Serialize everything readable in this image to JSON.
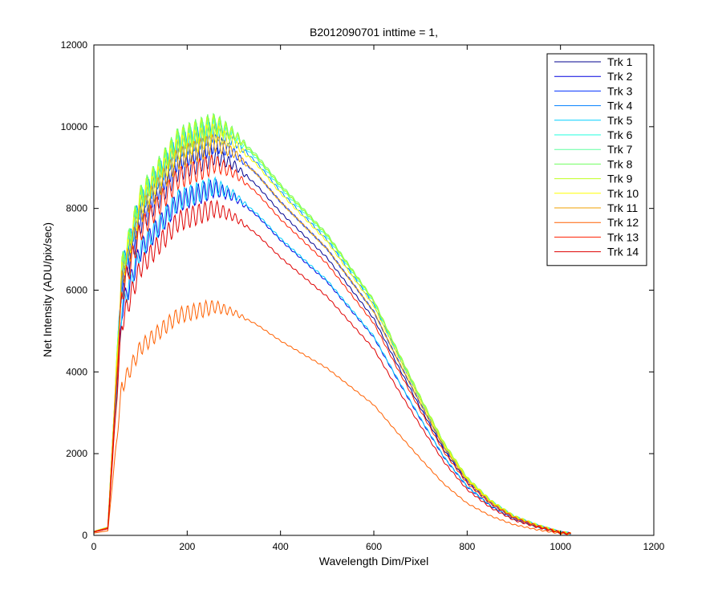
{
  "chart_data": {
    "type": "line",
    "title": "B2012090701 inttime = 1,",
    "xlabel": "Wavelength Dim/Pixel",
    "ylabel": "Net Intensity (ADU/pix/sec)",
    "xlim": [
      0,
      1200
    ],
    "ylim": [
      0,
      12000
    ],
    "xticks": [
      0,
      200,
      400,
      600,
      800,
      1000,
      1200
    ],
    "yticks": [
      0,
      2000,
      4000,
      6000,
      8000,
      10000,
      12000
    ],
    "grid": false,
    "legend_position": "top-right",
    "series": [
      {
        "name": "Trk 1",
        "color": "#00008F",
        "peak": 9300,
        "ripple": 280
      },
      {
        "name": "Trk 2",
        "color": "#0000DF",
        "peak": 8500,
        "ripple": 260
      },
      {
        "name": "Trk 3",
        "color": "#0030FF",
        "peak": 9600,
        "ripple": 300
      },
      {
        "name": "Trk 4",
        "color": "#0080FF",
        "peak": 9900,
        "ripple": 300
      },
      {
        "name": "Trk 5",
        "color": "#00CFFF",
        "peak": 8550,
        "ripple": 260
      },
      {
        "name": "Trk 6",
        "color": "#20FFDF",
        "peak": 10000,
        "ripple": 300
      },
      {
        "name": "Trk 7",
        "color": "#60FFA0",
        "peak": 10050,
        "ripple": 300
      },
      {
        "name": "Trk 8",
        "color": "#70FF60",
        "peak": 10100,
        "ripple": 300
      },
      {
        "name": "Trk 9",
        "color": "#C0FF20",
        "peak": 10050,
        "ripple": 300
      },
      {
        "name": "Trk 10",
        "color": "#FFFF00",
        "peak": 9850,
        "ripple": 300
      },
      {
        "name": "Trk 11",
        "color": "#F0A000",
        "peak": 9600,
        "ripple": 280
      },
      {
        "name": "Trk 12",
        "color": "#FF6000",
        "peak": 5600,
        "ripple": 200
      },
      {
        "name": "Trk 13",
        "color": "#FF2000",
        "peak": 9100,
        "ripple": 280
      },
      {
        "name": "Trk 14",
        "color": "#DF0000",
        "peak": 8000,
        "ripple": 260
      }
    ]
  }
}
